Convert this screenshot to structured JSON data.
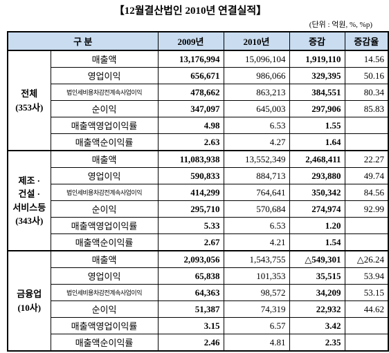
{
  "title": "【12월결산법인 2010년 연결실적】",
  "unit": "(단위 : 억원, %, %p)",
  "table": {
    "header": [
      "구    분",
      "2009년",
      "2010년",
      "증감",
      "증감율"
    ],
    "groups": [
      {
        "label": "전체\n(353사)",
        "rows": [
          {
            "label": "매출액",
            "cells": [
              "13,176,994",
              "15,096,104",
              "1,919,110",
              "14.56"
            ]
          },
          {
            "label": "영업이익",
            "cells": [
              "656,671",
              "986,066",
              "329,395",
              "50.16"
            ]
          },
          {
            "label": "법인세비용차감전계속사업이익",
            "cells": [
              "478,662",
              "863,213",
              "384,551",
              "80.34"
            ]
          },
          {
            "label": "순이익",
            "cells": [
              "347,097",
              "645,003",
              "297,906",
              "85.83"
            ]
          },
          {
            "label": "매출액영업이익률",
            "cells": [
              "4.98",
              "6.53",
              "1.55"
            ]
          },
          {
            "label": "매출액순이익률",
            "cells": [
              "2.63",
              "4.27",
              "1.64"
            ]
          }
        ]
      },
      {
        "label": "제조 ·\n건설 ·\n서비스등\n(343사)",
        "rows": [
          {
            "label": "매출액",
            "cells": [
              "11,083,938",
              "13,552,349",
              "2,468,411",
              "22.27"
            ]
          },
          {
            "label": "영업이익",
            "cells": [
              "590,833",
              "884,713",
              "293,880",
              "49.74"
            ]
          },
          {
            "label": "법인세비용차감전계속사업이익",
            "cells": [
              "414,299",
              "764,641",
              "350,342",
              "84.56"
            ]
          },
          {
            "label": "순이익",
            "cells": [
              "295,710",
              "570,684",
              "274,974",
              "92.99"
            ]
          },
          {
            "label": "매출액영업이익률",
            "cells": [
              "5.33",
              "6.53",
              "1.20"
            ]
          },
          {
            "label": "매출액순이익률",
            "cells": [
              "2.67",
              "4.21",
              "1.54"
            ]
          }
        ]
      },
      {
        "label": "금융업\n(10사)",
        "rows": [
          {
            "label": "매출액",
            "cells": [
              "2,093,056",
              "1,543,755",
              "△549,301",
              "△26.24"
            ]
          },
          {
            "label": "영업이익",
            "cells": [
              "65,838",
              "101,353",
              "35,515",
              "53.94"
            ]
          },
          {
            "label": "법인세비용차감전계속사업이익",
            "cells": [
              "64,363",
              "98,572",
              "34,209",
              "53.15"
            ]
          },
          {
            "label": "순이익",
            "cells": [
              "51,387",
              "74,319",
              "22,932",
              "44.62"
            ]
          },
          {
            "label": "매출액영업이익률",
            "cells": [
              "3.15",
              "6.57",
              "3.42"
            ]
          },
          {
            "label": "매출액순이익률",
            "cells": [
              "2.46",
              "4.81",
              "2.35"
            ]
          }
        ]
      }
    ]
  }
}
